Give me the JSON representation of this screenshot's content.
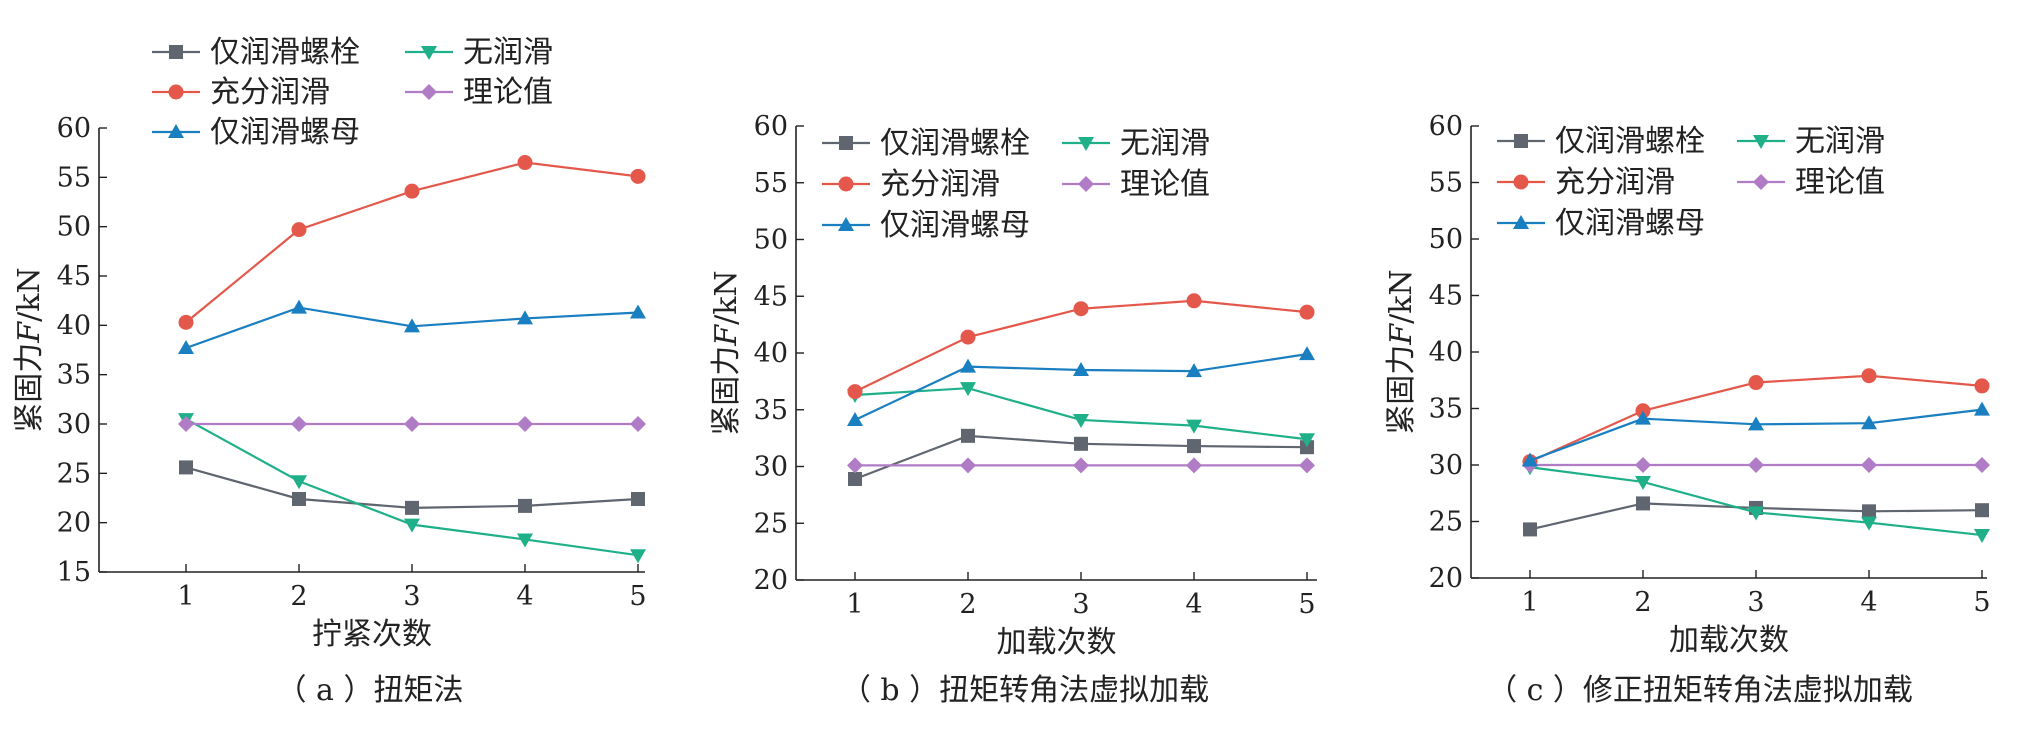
{
  "series_styles": [
    {
      "key": "bolt",
      "color": "#5f6670",
      "marker": "square"
    },
    {
      "key": "none",
      "color": "#1fb08a",
      "marker": "triangle-down"
    },
    {
      "key": "full",
      "color": "#e4584c",
      "marker": "circle"
    },
    {
      "key": "theory",
      "color": "#b07cc6",
      "marker": "diamond"
    },
    {
      "key": "nut",
      "color": "#1a7fc0",
      "marker": "triangle-up"
    }
  ],
  "chart_data": [
    {
      "type": "line",
      "caption": "（ a ）扭矩法",
      "xlabel": "拧紧次数",
      "ylabel_prefix": "紧固力",
      "ylabel_var": "F",
      "ylabel_unit": "/kN",
      "x": [
        1,
        2,
        3,
        4,
        5
      ],
      "xticks": [
        "1",
        "2",
        "3",
        "4",
        "5"
      ],
      "ylim": [
        15,
        60
      ],
      "yticks": [
        15,
        20,
        25,
        30,
        35,
        40,
        45,
        50,
        55,
        60
      ],
      "legend_position": "top-left",
      "series": [
        {
          "key": "bolt",
          "name": "仅润滑螺栓",
          "values": [
            25.6,
            22.4,
            21.5,
            21.7,
            22.4
          ]
        },
        {
          "key": "none",
          "name": "无润滑",
          "values": [
            30.5,
            24.2,
            19.8,
            18.3,
            16.7
          ]
        },
        {
          "key": "full",
          "name": "充分润滑",
          "values": [
            40.3,
            49.7,
            53.6,
            56.5,
            55.1
          ]
        },
        {
          "key": "theory",
          "name": "理论值",
          "values": [
            30.0,
            30.0,
            30.0,
            30.0,
            30.0
          ]
        },
        {
          "key": "nut",
          "name": "仅润滑螺母",
          "values": [
            37.7,
            41.8,
            39.9,
            40.7,
            41.3
          ]
        }
      ]
    },
    {
      "type": "line",
      "caption": "（ b ）扭矩转角法虚拟加载",
      "xlabel": "加载次数",
      "ylabel_prefix": "紧固力",
      "ylabel_var": "F",
      "ylabel_unit": "/kN",
      "x": [
        1,
        2,
        3,
        4,
        5
      ],
      "xticks": [
        "1",
        "2",
        "3",
        "4",
        "5"
      ],
      "ylim": [
        20,
        60
      ],
      "yticks": [
        20,
        25,
        30,
        35,
        40,
        45,
        50,
        55,
        60
      ],
      "legend_position": "top-left",
      "series": [
        {
          "key": "bolt",
          "name": "仅润滑螺栓",
          "values": [
            28.9,
            32.7,
            32.0,
            31.8,
            31.7
          ]
        },
        {
          "key": "none",
          "name": "无润滑",
          "values": [
            36.3,
            36.9,
            34.1,
            33.6,
            32.4
          ]
        },
        {
          "key": "full",
          "name": "充分润滑",
          "values": [
            36.6,
            41.4,
            43.9,
            44.6,
            43.6
          ]
        },
        {
          "key": "theory",
          "name": "理论值",
          "values": [
            30.1,
            30.1,
            30.1,
            30.1,
            30.1
          ]
        },
        {
          "key": "nut",
          "name": "仅润滑螺母",
          "values": [
            34.1,
            38.8,
            38.5,
            38.4,
            39.9
          ]
        }
      ]
    },
    {
      "type": "line",
      "caption": "（ c ）修正扭矩转角法虚拟加载",
      "xlabel": "加载次数",
      "ylabel_prefix": "紧固力",
      "ylabel_var": "F",
      "ylabel_unit": "/kN",
      "x": [
        1,
        2,
        3,
        4,
        5
      ],
      "xticks": [
        "1",
        "2",
        "3",
        "4",
        "5"
      ],
      "ylim": [
        20,
        60
      ],
      "yticks": [
        20,
        25,
        30,
        35,
        40,
        45,
        50,
        55,
        60
      ],
      "legend_position": "top-left",
      "series": [
        {
          "key": "bolt",
          "name": "仅润滑螺栓",
          "values": [
            24.3,
            26.6,
            26.2,
            25.9,
            26.0
          ]
        },
        {
          "key": "none",
          "name": "无润滑",
          "values": [
            29.8,
            28.5,
            25.8,
            24.9,
            23.8
          ]
        },
        {
          "key": "full",
          "name": "充分润滑",
          "values": [
            30.3,
            34.8,
            37.3,
            37.9,
            37.0
          ]
        },
        {
          "key": "theory",
          "name": "理论值",
          "values": [
            30.0,
            30.0,
            30.0,
            30.0,
            30.0
          ]
        },
        {
          "key": "nut",
          "name": "仅润滑螺母",
          "values": [
            30.4,
            34.1,
            33.6,
            33.7,
            34.9
          ]
        }
      ]
    }
  ]
}
